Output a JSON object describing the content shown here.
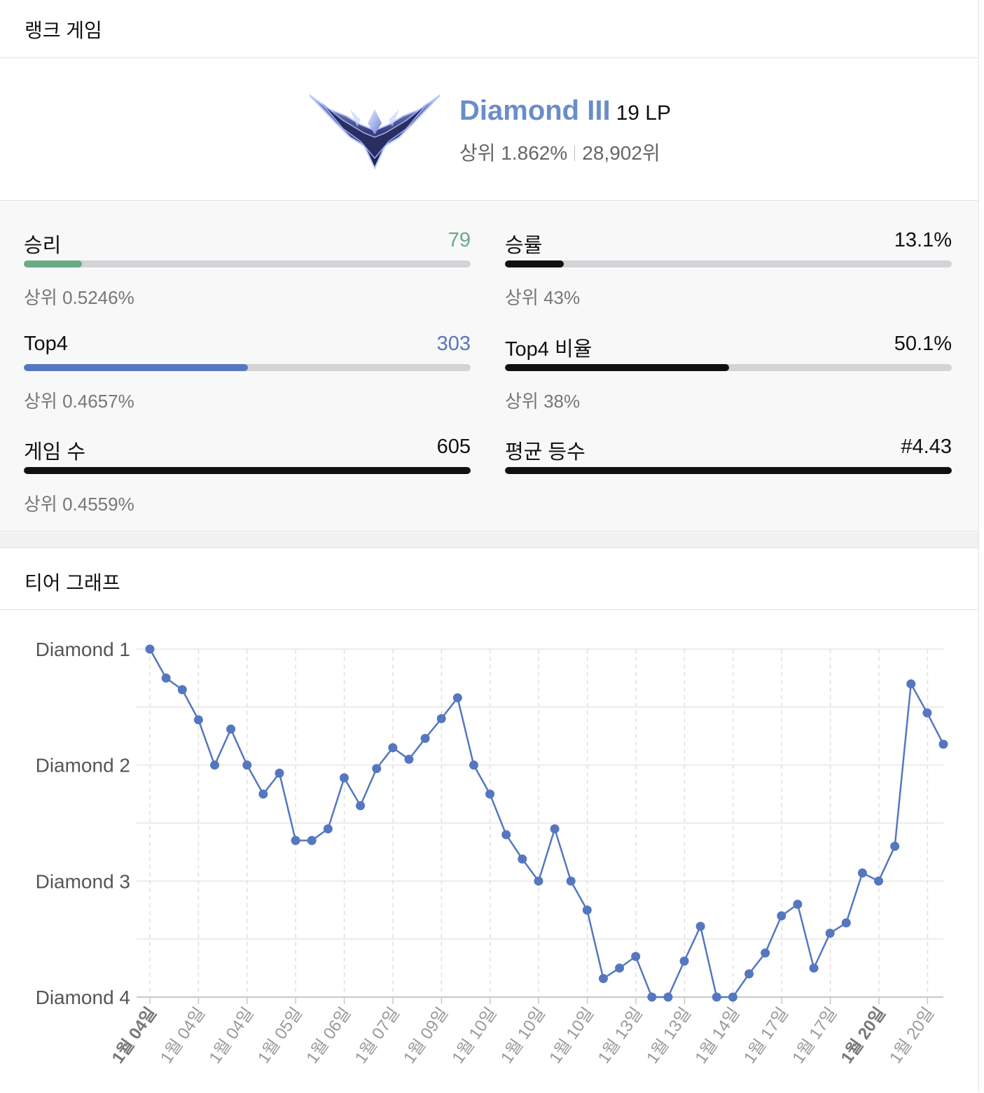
{
  "ranked": {
    "title": "랭크 게임",
    "tier": "Diamond III",
    "lp": "19 LP",
    "top_percent": "상위 1.862%",
    "rank": "28,902위"
  },
  "stats": [
    {
      "label": "승리",
      "value": "79",
      "fill": 0.13,
      "color": "#6aaa85",
      "value_color": "#6aaa85",
      "sub": "상위 0.5246%"
    },
    {
      "label": "승률",
      "value": "13.1%",
      "fill": 0.131,
      "color": "#111111",
      "value_color": "#111111",
      "sub": "상위 43%"
    },
    {
      "label": "Top4",
      "value": "303",
      "fill": 0.501,
      "color": "#5577c0",
      "value_color": "#5577c0",
      "sub": "상위 0.4657%"
    },
    {
      "label": "Top4 비율",
      "value": "50.1%",
      "fill": 0.501,
      "color": "#111111",
      "value_color": "#111111",
      "sub": "상위 38%"
    },
    {
      "label": "게임 수",
      "value": "605",
      "fill": 1.0,
      "color": "#111111",
      "value_color": "#111111",
      "sub": "상위 0.4559%"
    },
    {
      "label": "평균 등수",
      "value": "#4.43",
      "fill": 1.0,
      "color": "#111111",
      "value_color": "#111111",
      "sub": ""
    }
  ],
  "graph": {
    "title": "티어 그래프"
  },
  "chart_data": {
    "type": "line",
    "y_tick_labels": [
      "Diamond 1",
      "Diamond 2",
      "Diamond 3",
      "Diamond 4"
    ],
    "ylim": [
      1,
      4
    ],
    "y_inverted": true,
    "x_tick_labels": [
      "1월 04일",
      "1월 04일",
      "1월 04일",
      "1월 05일",
      "1월 06일",
      "1월 07일",
      "1월 09일",
      "1월 10일",
      "1월 10일",
      "1월 10일",
      "1월 13일",
      "1월 13일",
      "1월 14일",
      "1월 17일",
      "1월 17일",
      "1월 20일",
      "1월 20일"
    ],
    "x_tick_bold": [
      0,
      15
    ],
    "grid": true,
    "series": [
      {
        "color": "#5577c0",
        "values": [
          1.0,
          1.25,
          1.35,
          1.61,
          2.0,
          1.69,
          2.0,
          2.25,
          2.07,
          2.65,
          2.65,
          2.55,
          2.11,
          2.35,
          2.03,
          1.85,
          1.95,
          1.77,
          1.6,
          1.42,
          2.0,
          2.25,
          2.6,
          2.81,
          3.0,
          2.55,
          3.0,
          3.25,
          3.84,
          3.75,
          3.65,
          4.0,
          4.0,
          3.69,
          3.39,
          4.0,
          4.0,
          3.8,
          3.62,
          3.3,
          3.2,
          3.75,
          3.45,
          3.36,
          2.93,
          3.0,
          2.7,
          1.3,
          1.55,
          1.82
        ]
      }
    ]
  }
}
